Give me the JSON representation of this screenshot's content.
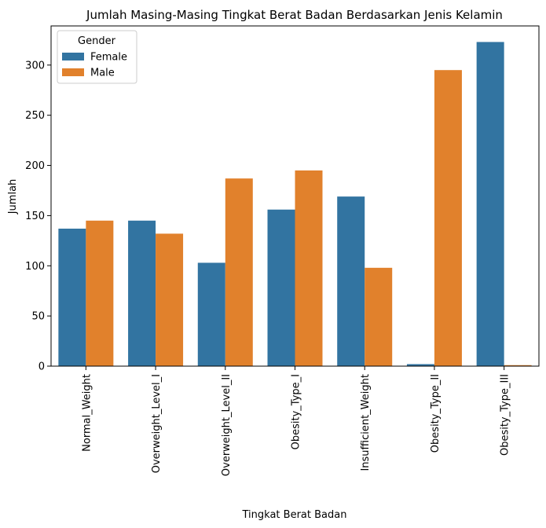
{
  "chart_data": {
    "type": "bar",
    "title": "Jumlah Masing-Masing Tingkat Berat Badan Berdasarkan Jenis Kelamin",
    "xlabel": "Tingkat Berat Badan",
    "ylabel": "Jumlah",
    "categories": [
      "Normal_Weight",
      "Overweight_Level_I",
      "Overweight_Level_II",
      "Obesity_Type_I",
      "Insufficient_Weight",
      "Obesity_Type_II",
      "Obesity_Type_III"
    ],
    "series": [
      {
        "name": "Female",
        "color": "#3274a1",
        "values": [
          137,
          145,
          103,
          156,
          169,
          2,
          323
        ]
      },
      {
        "name": "Male",
        "color": "#e1812c",
        "values": [
          145,
          132,
          187,
          195,
          98,
          295,
          1
        ]
      }
    ],
    "ylim": [
      0,
      339
    ],
    "yticks": [
      0,
      50,
      100,
      150,
      200,
      250,
      300
    ],
    "grid": false,
    "legend": {
      "title": "Gender",
      "placement": "top-left"
    }
  }
}
